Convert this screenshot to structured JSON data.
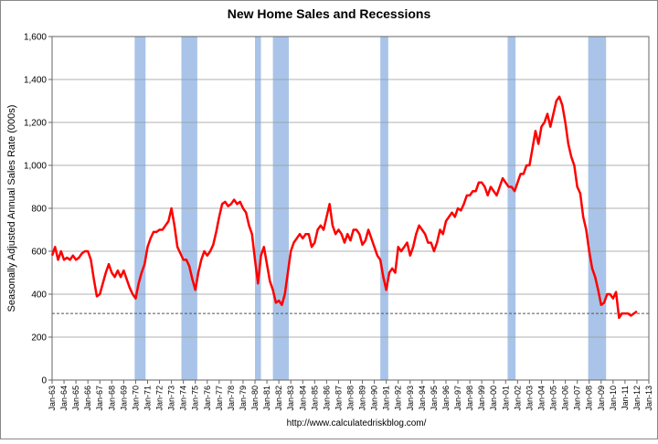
{
  "chart_data": {
    "type": "line",
    "title": "New Home Sales and Recessions",
    "y_label": "Seasonally Adjusted Annual Sales Rate (000s)",
    "source": "http://www.calculatedriskblog.com/",
    "ylim": [
      0,
      1600
    ],
    "yticks": [
      0,
      200,
      400,
      600,
      800,
      {
        "value": 1000,
        "label": "1,000"
      },
      {
        "value": 1200,
        "label": "1,200"
      },
      {
        "value": 1400,
        "label": "1,400"
      },
      {
        "value": 1600,
        "label": "1,600"
      }
    ],
    "xlim": [
      "Jan-63",
      "Jan-13"
    ],
    "xticks": [
      "Jan-63",
      "Jan-64",
      "Jan-65",
      "Jan-66",
      "Jan-67",
      "Jan-68",
      "Jan-69",
      "Jan-70",
      "Jan-71",
      "Jan-72",
      "Jan-73",
      "Jan-74",
      "Jan-75",
      "Jan-76",
      "Jan-77",
      "Jan-78",
      "Jan-79",
      "Jan-80",
      "Jan-81",
      "Jan-82",
      "Jan-83",
      "Jan-84",
      "Jan-85",
      "Jan-86",
      "Jan-87",
      "Jan-88",
      "Jan-89",
      "Jan-90",
      "Jan-91",
      "Jan-92",
      "Jan-93",
      "Jan-94",
      "Jan-95",
      "Jan-96",
      "Jan-97",
      "Jan-98",
      "Jan-99",
      "Jan-00",
      "Jan-01",
      "Jan-02",
      "Jan-03",
      "Jan-04",
      "Jan-05",
      "Jan-06",
      "Jan-07",
      "Jan-08",
      "Jan-09",
      "Jan-10",
      "Jan-11",
      "Jan-12",
      "Jan-13"
    ],
    "grid": true,
    "recessions": {
      "color": "#a9c4e8",
      "periods": [
        [
          "Dec-69",
          "Nov-70"
        ],
        [
          "Nov-73",
          "Mar-75"
        ],
        [
          "Jan-80",
          "Jul-80"
        ],
        [
          "Jul-81",
          "Nov-82"
        ],
        [
          "Jul-90",
          "Mar-91"
        ],
        [
          "Mar-01",
          "Nov-01"
        ],
        [
          "Dec-07",
          "Jun-09"
        ]
      ]
    },
    "reference_line": {
      "value": 310,
      "color": "#555555"
    },
    "x": [
      "Jan-63",
      "Apr-63",
      "Jul-63",
      "Oct-63",
      "Jan-64",
      "Apr-64",
      "Jul-64",
      "Oct-64",
      "Jan-65",
      "Apr-65",
      "Jul-65",
      "Oct-65",
      "Jan-66",
      "Apr-66",
      "Jul-66",
      "Oct-66",
      "Jan-67",
      "Apr-67",
      "Jul-67",
      "Oct-67",
      "Jan-68",
      "Apr-68",
      "Jul-68",
      "Oct-68",
      "Jan-69",
      "Apr-69",
      "Jul-69",
      "Oct-69",
      "Jan-70",
      "Apr-70",
      "Jul-70",
      "Oct-70",
      "Jan-71",
      "Apr-71",
      "Jul-71",
      "Oct-71",
      "Jan-72",
      "Apr-72",
      "Jul-72",
      "Oct-72",
      "Jan-73",
      "Apr-73",
      "Jul-73",
      "Oct-73",
      "Jan-74",
      "Apr-74",
      "Jul-74",
      "Oct-74",
      "Jan-75",
      "Apr-75",
      "Jul-75",
      "Oct-75",
      "Jan-76",
      "Apr-76",
      "Jul-76",
      "Oct-76",
      "Jan-77",
      "Apr-77",
      "Jul-77",
      "Oct-77",
      "Jan-78",
      "Apr-78",
      "Jul-78",
      "Oct-78",
      "Jan-79",
      "Apr-79",
      "Jul-79",
      "Oct-79",
      "Jan-80",
      "Apr-80",
      "Jul-80",
      "Oct-80",
      "Jan-81",
      "Apr-81",
      "Jul-81",
      "Oct-81",
      "Jan-82",
      "Apr-82",
      "Jul-82",
      "Oct-82",
      "Jan-83",
      "Apr-83",
      "Jul-83",
      "Oct-83",
      "Jan-84",
      "Apr-84",
      "Jul-84",
      "Oct-84",
      "Jan-85",
      "Apr-85",
      "Jul-85",
      "Oct-85",
      "Jan-86",
      "Apr-86",
      "Jul-86",
      "Oct-86",
      "Jan-87",
      "Apr-87",
      "Jul-87",
      "Oct-87",
      "Jan-88",
      "Apr-88",
      "Jul-88",
      "Oct-88",
      "Jan-89",
      "Apr-89",
      "Jul-89",
      "Oct-89",
      "Jan-90",
      "Apr-90",
      "Jul-90",
      "Oct-90",
      "Jan-91",
      "Apr-91",
      "Jul-91",
      "Oct-91",
      "Jan-92",
      "Apr-92",
      "Jul-92",
      "Oct-92",
      "Jan-93",
      "Apr-93",
      "Jul-93",
      "Oct-93",
      "Jan-94",
      "Apr-94",
      "Jul-94",
      "Oct-94",
      "Jan-95",
      "Apr-95",
      "Jul-95",
      "Oct-95",
      "Jan-96",
      "Apr-96",
      "Jul-96",
      "Oct-96",
      "Jan-97",
      "Apr-97",
      "Jul-97",
      "Oct-97",
      "Jan-98",
      "Apr-98",
      "Jul-98",
      "Oct-98",
      "Jan-99",
      "Apr-99",
      "Jul-99",
      "Oct-99",
      "Jan-00",
      "Apr-00",
      "Jul-00",
      "Oct-00",
      "Jan-01",
      "Apr-01",
      "Jul-01",
      "Oct-01",
      "Jan-02",
      "Apr-02",
      "Jul-02",
      "Oct-02",
      "Jan-03",
      "Apr-03",
      "Jul-03",
      "Oct-03",
      "Jan-04",
      "Apr-04",
      "Jul-04",
      "Oct-04",
      "Jan-05",
      "Apr-05",
      "Jul-05",
      "Oct-05",
      "Jan-06",
      "Apr-06",
      "Jul-06",
      "Oct-06",
      "Jan-07",
      "Apr-07",
      "Jul-07",
      "Oct-07",
      "Jan-08",
      "Apr-08",
      "Jul-08",
      "Oct-08",
      "Jan-09",
      "Apr-09",
      "Jul-09",
      "Oct-09",
      "Jan-10",
      "Apr-10",
      "Jul-10",
      "Oct-10",
      "Jan-11",
      "Apr-11",
      "Jul-11",
      "Oct-11",
      "Jan-12"
    ],
    "series": [
      {
        "color": "#ff0000",
        "values": [
          580,
          620,
          560,
          600,
          560,
          570,
          560,
          580,
          560,
          570,
          590,
          600,
          600,
          560,
          470,
          390,
          400,
          450,
          500,
          540,
          500,
          480,
          510,
          480,
          510,
          470,
          430,
          400,
          380,
          450,
          500,
          540,
          620,
          660,
          690,
          690,
          700,
          700,
          720,
          740,
          800,
          720,
          620,
          590,
          560,
          560,
          530,
          470,
          420,
          500,
          560,
          600,
          580,
          600,
          630,
          690,
          760,
          820,
          830,
          810,
          820,
          840,
          820,
          830,
          800,
          780,
          720,
          680,
          560,
          450,
          580,
          620,
          540,
          460,
          420,
          360,
          370,
          350,
          400,
          500,
          600,
          640,
          660,
          680,
          660,
          680,
          680,
          620,
          640,
          700,
          720,
          700,
          760,
          820,
          720,
          680,
          700,
          680,
          640,
          680,
          650,
          700,
          700,
          680,
          630,
          650,
          700,
          660,
          620,
          580,
          560,
          480,
          420,
          500,
          520,
          500,
          620,
          600,
          620,
          640,
          580,
          620,
          680,
          720,
          700,
          680,
          640,
          640,
          600,
          640,
          700,
          680,
          740,
          760,
          780,
          760,
          800,
          790,
          820,
          860,
          860,
          880,
          880,
          920,
          920,
          900,
          860,
          900,
          880,
          860,
          900,
          940,
          920,
          900,
          900,
          880,
          920,
          960,
          960,
          1000,
          1000,
          1080,
          1160,
          1100,
          1180,
          1200,
          1240,
          1180,
          1240,
          1300,
          1320,
          1280,
          1200,
          1100,
          1040,
          1000,
          900,
          870,
          760,
          700,
          600,
          520,
          480,
          420,
          350,
          360,
          400,
          400,
          380,
          410,
          290,
          310,
          310,
          310,
          300,
          310,
          320
        ]
      }
    ]
  }
}
